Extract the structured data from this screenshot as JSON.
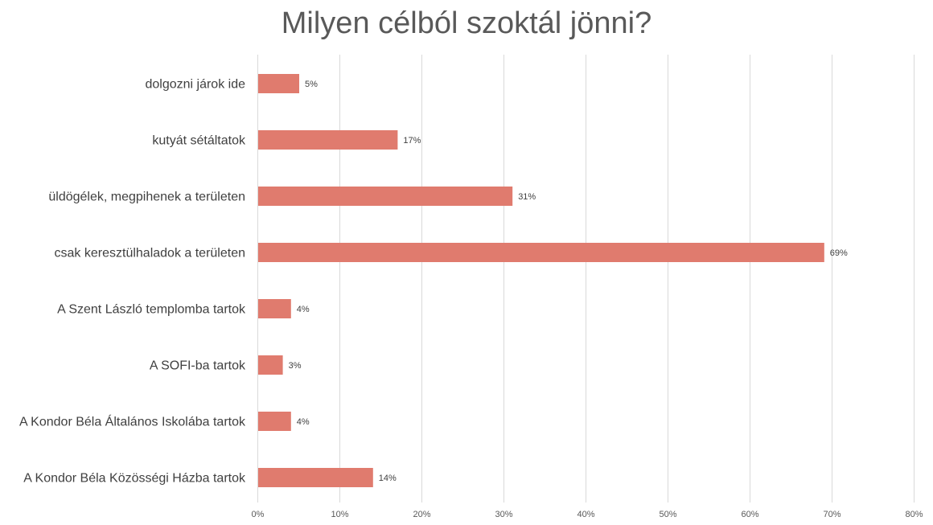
{
  "chart_data": {
    "type": "bar",
    "orientation": "horizontal",
    "title": "Milyen célból szoktál jönni?",
    "categories": [
      "dolgozni járok ide",
      "kutyát sétáltatok",
      "üldögélek, megpihenek a területen",
      "csak keresztülhaladok a területen",
      "A Szent László templomba tartok",
      "A SOFI-ba tartok",
      "A Kondor Béla Általános Iskolába tartok",
      "A Kondor Béla Közösségi Házba tartok"
    ],
    "values": [
      5,
      17,
      31,
      69,
      4,
      3,
      4,
      14
    ],
    "data_labels": [
      "5%",
      "17%",
      "31%",
      "69%",
      "4%",
      "3%",
      "4%",
      "14%"
    ],
    "xlim": [
      0,
      80
    ],
    "xticks": [
      "0%",
      "10%",
      "20%",
      "30%",
      "40%",
      "50%",
      "60%",
      "70%",
      "80%"
    ],
    "grid": true,
    "bar_color": "#e07b6e"
  }
}
